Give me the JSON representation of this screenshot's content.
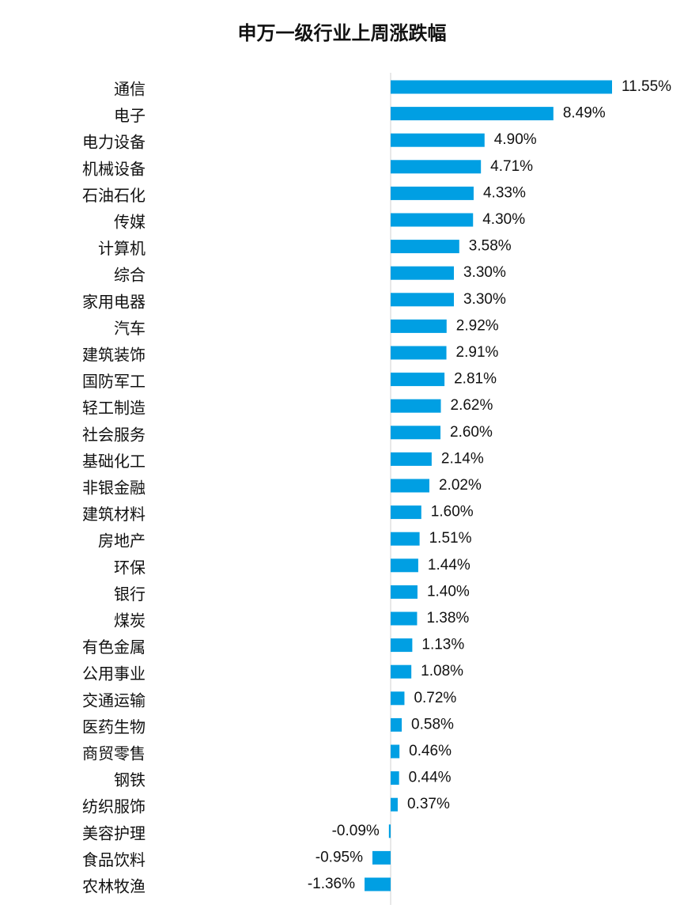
{
  "chart_data": {
    "type": "bar",
    "orientation": "horizontal",
    "title": "申万一级行业上周涨跌幅",
    "xlabel": "",
    "ylabel": "",
    "unit": "%",
    "bar_color": "#009fe3",
    "grid": false,
    "legend": "none",
    "xlim": [
      -1.6,
      11.55
    ],
    "categories": [
      "通信",
      "电子",
      "电力设备",
      "机械设备",
      "石油石化",
      "传媒",
      "计算机",
      "综合",
      "家用电器",
      "汽车",
      "建筑装饰",
      "国防军工",
      "轻工制造",
      "社会服务",
      "基础化工",
      "非银金融",
      "建筑材料",
      "房地产",
      "环保",
      "银行",
      "煤炭",
      "有色金属",
      "公用事业",
      "交通运输",
      "医药生物",
      "商贸零售",
      "钢铁",
      "纺织服饰",
      "美容护理",
      "食品饮料",
      "农林牧渔"
    ],
    "values": [
      11.55,
      8.49,
      4.9,
      4.71,
      4.33,
      4.3,
      3.58,
      3.3,
      3.3,
      2.92,
      2.91,
      2.81,
      2.62,
      2.6,
      2.14,
      2.02,
      1.6,
      1.51,
      1.44,
      1.4,
      1.38,
      1.13,
      1.08,
      0.72,
      0.58,
      0.46,
      0.44,
      0.37,
      -0.09,
      -0.95,
      -1.36
    ],
    "data_labels": [
      "11.55%",
      "8.49%",
      "4.90%",
      "4.71%",
      "4.33%",
      "4.30%",
      "3.58%",
      "3.30%",
      "3.30%",
      "2.92%",
      "2.91%",
      "2.81%",
      "2.62%",
      "2.60%",
      "2.14%",
      "2.02%",
      "1.60%",
      "1.51%",
      "1.44%",
      "1.40%",
      "1.38%",
      "1.13%",
      "1.08%",
      "0.72%",
      "0.58%",
      "0.46%",
      "0.44%",
      "0.37%",
      "-0.09%",
      "-0.95%",
      "-1.36%"
    ]
  }
}
